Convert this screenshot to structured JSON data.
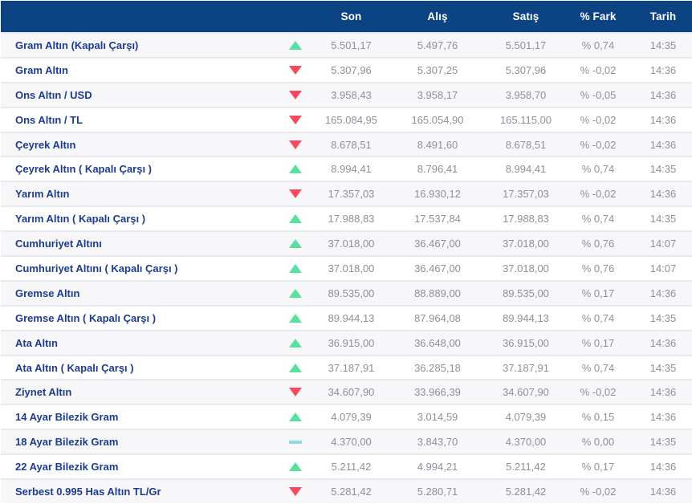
{
  "table": {
    "columns": {
      "name": "",
      "trend": "",
      "son": "Son",
      "alis": "Alış",
      "satis": "Satış",
      "fark": "% Fark",
      "tarih": "Tarih"
    },
    "rows": [
      {
        "name": "Gram Altın (Kapalı Çarşı)",
        "trend": "up",
        "son": "5.501,17",
        "alis": "5.497,76",
        "satis": "5.501,17",
        "fark": "% 0,74",
        "tarih": "14:35"
      },
      {
        "name": "Gram Altın",
        "trend": "down",
        "son": "5.307,96",
        "alis": "5.307,25",
        "satis": "5.307,96",
        "fark": "% -0,02",
        "tarih": "14:36"
      },
      {
        "name": "Ons Altın / USD",
        "trend": "down",
        "son": "3.958,43",
        "alis": "3.958,17",
        "satis": "3.958,70",
        "fark": "% -0,05",
        "tarih": "14:36"
      },
      {
        "name": "Ons Altın / TL",
        "trend": "down",
        "son": "165.084,95",
        "alis": "165.054,90",
        "satis": "165.115,00",
        "fark": "% -0,02",
        "tarih": "14:36"
      },
      {
        "name": "Çeyrek Altın",
        "trend": "down",
        "son": "8.678,51",
        "alis": "8.491,60",
        "satis": "8.678,51",
        "fark": "% -0,02",
        "tarih": "14:36"
      },
      {
        "name": "Çeyrek Altın ( Kapalı Çarşı )",
        "trend": "up",
        "son": "8.994,41",
        "alis": "8.796,41",
        "satis": "8.994,41",
        "fark": "% 0,74",
        "tarih": "14:35"
      },
      {
        "name": "Yarım Altın",
        "trend": "down",
        "son": "17.357,03",
        "alis": "16.930,12",
        "satis": "17.357,03",
        "fark": "% -0,02",
        "tarih": "14:36"
      },
      {
        "name": "Yarım Altın ( Kapalı Çarşı )",
        "trend": "up",
        "son": "17.988,83",
        "alis": "17.537,84",
        "satis": "17.988,83",
        "fark": "% 0,74",
        "tarih": "14:35"
      },
      {
        "name": "Cumhuriyet Altını",
        "trend": "up",
        "son": "37.018,00",
        "alis": "36.467,00",
        "satis": "37.018,00",
        "fark": "% 0,76",
        "tarih": "14:07"
      },
      {
        "name": "Cumhuriyet Altını ( Kapalı Çarşı )",
        "trend": "up",
        "son": "37.018,00",
        "alis": "36.467,00",
        "satis": "37.018,00",
        "fark": "% 0,76",
        "tarih": "14:07"
      },
      {
        "name": "Gremse Altın",
        "trend": "up",
        "son": "89.535,00",
        "alis": "88.889,00",
        "satis": "89.535,00",
        "fark": "% 0,17",
        "tarih": "14:36"
      },
      {
        "name": "Gremse Altın ( Kapalı Çarşı )",
        "trend": "up",
        "son": "89.944,13",
        "alis": "87.964,08",
        "satis": "89.944,13",
        "fark": "% 0,74",
        "tarih": "14:35"
      },
      {
        "name": "Ata Altın",
        "trend": "up",
        "son": "36.915,00",
        "alis": "36.648,00",
        "satis": "36.915,00",
        "fark": "% 0,17",
        "tarih": "14:36"
      },
      {
        "name": "Ata Altın ( Kapalı Çarşı )",
        "trend": "up",
        "son": "37.187,91",
        "alis": "36.285,18",
        "satis": "37.187,91",
        "fark": "% 0,74",
        "tarih": "14:35"
      },
      {
        "name": "Ziynet Altın",
        "trend": "down",
        "son": "34.607,90",
        "alis": "33.966,39",
        "satis": "34.607,90",
        "fark": "% -0,02",
        "tarih": "14:36"
      },
      {
        "name": "14 Ayar Bilezik Gram",
        "trend": "up",
        "son": "4.079,39",
        "alis": "3.014,59",
        "satis": "4.079,39",
        "fark": "% 0,15",
        "tarih": "14:36"
      },
      {
        "name": "18 Ayar Bilezik Gram",
        "trend": "flat",
        "son": "4.370,00",
        "alis": "3.843,70",
        "satis": "4.370,00",
        "fark": "% 0,00",
        "tarih": "14:35"
      },
      {
        "name": "22 Ayar Bilezik Gram",
        "trend": "up",
        "son": "5.211,42",
        "alis": "4.994,21",
        "satis": "5.211,42",
        "fark": "% 0,17",
        "tarih": "14:36"
      },
      {
        "name": "Serbest 0.995 Has Altın TL/Gr",
        "trend": "down",
        "son": "5.281,42",
        "alis": "5.280,71",
        "satis": "5.281,42",
        "fark": "% -0,02",
        "tarih": "14:36"
      }
    ]
  },
  "colors": {
    "header_bg": "#0c4383",
    "up": "#57e09e",
    "down": "#f9495f",
    "flat": "#8fd9e2",
    "name_text": "#1d3c8f",
    "value_text": "#8e9099",
    "row_odd_bg": "#f7f7f9",
    "row_even_bg": "#ffffff",
    "separator": "#e8e9ee"
  }
}
